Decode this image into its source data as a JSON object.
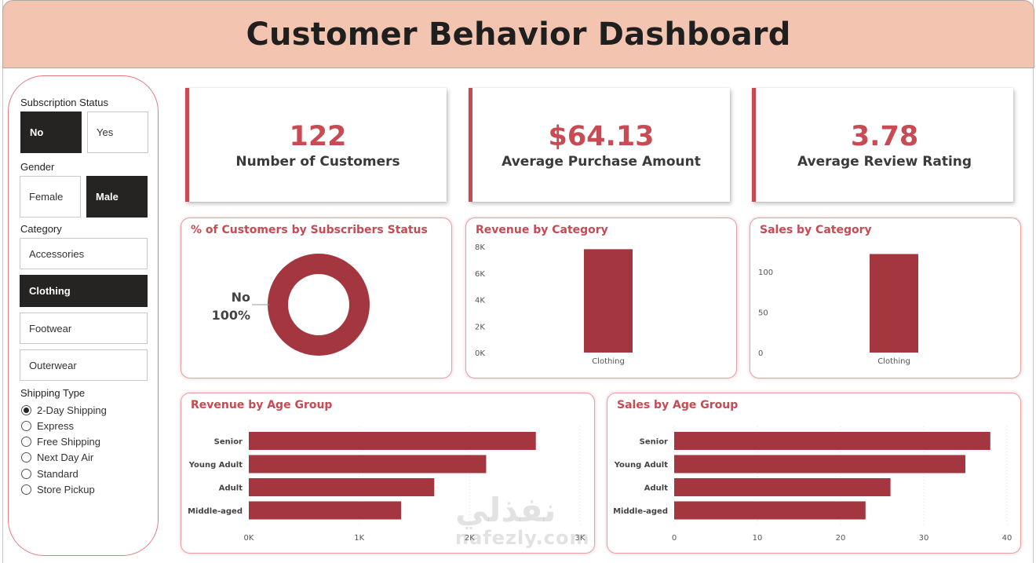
{
  "header": {
    "title": "Customer Behavior Dashboard"
  },
  "slicers": {
    "subscription": {
      "title": "Subscription Status",
      "options": [
        {
          "label": "No",
          "selected": true
        },
        {
          "label": "Yes",
          "selected": false
        }
      ]
    },
    "gender": {
      "title": "Gender",
      "options": [
        {
          "label": "Female",
          "selected": false
        },
        {
          "label": "Male",
          "selected": true
        }
      ]
    },
    "category": {
      "title": "Category",
      "options": [
        {
          "label": "Accessories",
          "selected": false
        },
        {
          "label": "Clothing",
          "selected": true
        },
        {
          "label": "Footwear",
          "selected": false
        },
        {
          "label": "Outerwear",
          "selected": false
        }
      ]
    },
    "shipping": {
      "title": "Shipping Type",
      "options": [
        {
          "label": "2-Day Shipping",
          "selected": true
        },
        {
          "label": "Express",
          "selected": false
        },
        {
          "label": "Free Shipping",
          "selected": false
        },
        {
          "label": "Next Day Air",
          "selected": false
        },
        {
          "label": "Standard",
          "selected": false
        },
        {
          "label": "Store Pickup",
          "selected": false
        }
      ]
    }
  },
  "kpis": [
    {
      "value": "122",
      "label": "Number of Customers"
    },
    {
      "value": "$64.13",
      "label": "Average Purchase Amount"
    },
    {
      "value": "3.78",
      "label": "Average Review Rating"
    }
  ],
  "colors": {
    "accent": "#c84a52",
    "bar": "#a3363f",
    "header_bg": "#f3c4b0",
    "selected_tile": "#252423"
  },
  "watermark": {
    "arabic": "نفذلي",
    "latin": "nafezly.com"
  },
  "chart_data": [
    {
      "id": "subscriber-donut",
      "type": "pie",
      "title": "% of Customers by Subscribers Status",
      "slices": [
        {
          "label": "No",
          "value": 100,
          "value_label": "100%"
        }
      ]
    },
    {
      "id": "revenue-by-category",
      "type": "bar",
      "title": "Revenue by Category",
      "categories": [
        "Clothing"
      ],
      "values": [
        7800
      ],
      "yticks": [
        0,
        2000,
        4000,
        6000,
        8000
      ],
      "ytick_labels": [
        "0K",
        "2K",
        "4K",
        "6K",
        "8K"
      ],
      "ylim": [
        0,
        8000
      ]
    },
    {
      "id": "sales-by-category",
      "type": "bar",
      "title": "Sales by Category",
      "categories": [
        "Clothing"
      ],
      "values": [
        122
      ],
      "yticks": [
        0,
        50,
        100
      ],
      "ytick_labels": [
        "0",
        "50",
        "100"
      ],
      "ylim": [
        0,
        140
      ]
    },
    {
      "id": "revenue-by-age",
      "type": "bar",
      "orientation": "horizontal",
      "title": "Revenue by Age Group",
      "categories": [
        "Senior",
        "Young Adult",
        "Adult",
        "Middle-aged"
      ],
      "values": [
        2600,
        2150,
        1680,
        1380
      ],
      "xticks": [
        0,
        1000,
        2000,
        3000
      ],
      "xtick_labels": [
        "0K",
        "1K",
        "2K",
        "3K"
      ],
      "xlim": [
        0,
        3000
      ]
    },
    {
      "id": "sales-by-age",
      "type": "bar",
      "orientation": "horizontal",
      "title": "Sales by Age Group",
      "categories": [
        "Senior",
        "Young Adult",
        "Adult",
        "Middle-aged"
      ],
      "values": [
        38,
        35,
        26,
        23
      ],
      "xticks": [
        0,
        10,
        20,
        30,
        40
      ],
      "xtick_labels": [
        "0",
        "10",
        "20",
        "30",
        "40"
      ],
      "xlim": [
        0,
        40
      ]
    }
  ]
}
